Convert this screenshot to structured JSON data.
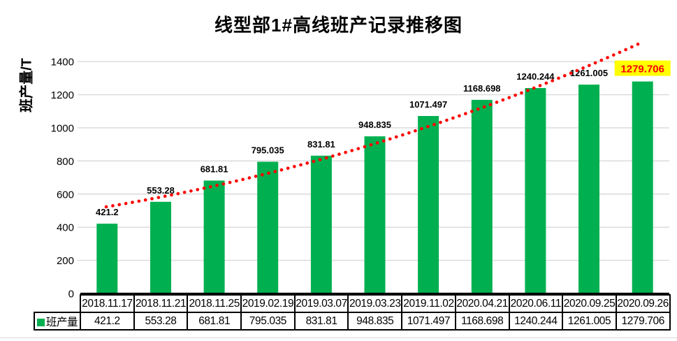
{
  "chart_data": {
    "type": "bar",
    "title": "线型部1#高线班产记录推移图",
    "ylabel": "班产量/T",
    "xlabel": "",
    "ylim": [
      0,
      1400
    ],
    "yticks": [
      0,
      200,
      400,
      600,
      800,
      1000,
      1200,
      1400
    ],
    "grid": true,
    "data_labels": true,
    "categories": [
      "2018.11.17",
      "2018.11.21",
      "2018.11.25",
      "2019.02.19",
      "2019.03.07",
      "2019.03.23",
      "2019.11.02",
      "2020.04.21",
      "2020.06.11",
      "2020.09.25",
      "2020.09.26"
    ],
    "series": [
      {
        "name": "班产量",
        "color": "#00B050",
        "values": [
          421.2,
          553.28,
          681.81,
          795.035,
          831.81,
          948.835,
          1071.497,
          1168.698,
          1240.244,
          1261.005,
          1279.706
        ]
      }
    ],
    "trendline": {
      "shape": "exponential",
      "style": "dotted",
      "color": "#FF0000"
    },
    "highlight": {
      "index": 10,
      "value": 1279.706,
      "text_color": "#FF0000",
      "background_color": "#FFFF00"
    },
    "legend": {
      "label": "班产量",
      "swatch_color": "#00B050",
      "position": "table-row-header"
    }
  },
  "colors": {
    "background": "#FFFFFF",
    "bar": "#00B050",
    "gridline": "#D9D9D9",
    "axis": "#000000",
    "label_text": "#000000",
    "table_border": "#000000"
  }
}
